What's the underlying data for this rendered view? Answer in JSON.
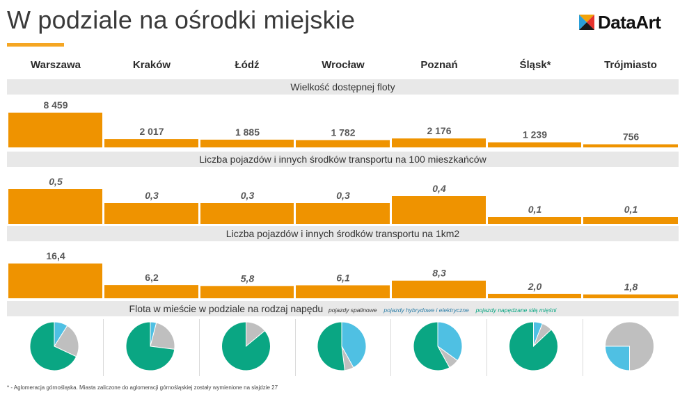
{
  "header": {
    "title": "W podziale na ośrodki miejskie",
    "logo_text": "DataArt"
  },
  "cities": [
    "Warszawa",
    "Kraków",
    "Łódź",
    "Wrocław",
    "Poznań",
    "Śląsk*",
    "Trójmiasto"
  ],
  "colors": {
    "bar": "#ef9300",
    "band": "#e8e8e8",
    "pie_combustion": "#bfbfbf",
    "pie_hybrid_electric": "#4fc0e3",
    "pie_muscle": "#0aa683",
    "accent": "#f5a623"
  },
  "chart_data": [
    {
      "type": "bar",
      "title": "Wielkość dostępnej floty",
      "categories": [
        "Warszawa",
        "Kraków",
        "Łódź",
        "Wrocław",
        "Poznań",
        "Śląsk*",
        "Trójmiasto"
      ],
      "values": [
        8459,
        2017,
        1885,
        1782,
        2176,
        1239,
        756
      ],
      "labels": [
        "8 459",
        "2 017",
        "1 885",
        "1 782",
        "2 176",
        "1 239",
        "756"
      ],
      "label_style": "normal"
    },
    {
      "type": "bar",
      "title": "Liczba pojazdów i innych środków transportu na 100 mieszkańców",
      "categories": [
        "Warszawa",
        "Kraków",
        "Łódź",
        "Wrocław",
        "Poznań",
        "Śląsk*",
        "Trójmiasto"
      ],
      "values": [
        0.5,
        0.3,
        0.3,
        0.3,
        0.4,
        0.1,
        0.1
      ],
      "labels": [
        "0,5",
        "0,3",
        "0,3",
        "0,3",
        "0,4",
        "0,1",
        "0,1"
      ],
      "label_style": "italic"
    },
    {
      "type": "bar",
      "title": "Liczba pojazdów i innych środków transportu na 1km2",
      "categories": [
        "Warszawa",
        "Kraków",
        "Łódź",
        "Wrocław",
        "Poznań",
        "Śląsk*",
        "Trójmiasto"
      ],
      "values": [
        16.4,
        6.2,
        5.8,
        6.1,
        8.3,
        2.0,
        1.8
      ],
      "labels": [
        "16,4",
        "6,2",
        "5,8",
        "6,1",
        "8,3",
        "2,0",
        "1,8"
      ],
      "label_style": "mixed"
    },
    {
      "type": "pie",
      "title": "Flota w mieście w podziale na rodzaj napędu",
      "legend": [
        {
          "name": "pojazdy spalinowe",
          "color": "#333333"
        },
        {
          "name": "pojazdy  hybrydowe i elektryczne",
          "color": "#2e7fa8"
        },
        {
          "name": "pojazdy napędzane siłą mięśni",
          "color": "#0aa683"
        }
      ],
      "categories": [
        "Warszawa",
        "Kraków",
        "Łódź",
        "Wrocław",
        "Poznań",
        "Śląsk*",
        "Trójmiasto"
      ],
      "shares": [
        {
          "combustion": 0.23,
          "hybrid_electric": 0.09,
          "muscle": 0.68
        },
        {
          "combustion": 0.23,
          "hybrid_electric": 0.04,
          "muscle": 0.73
        },
        {
          "combustion": 0.14,
          "hybrid_electric": 0.0,
          "muscle": 0.86
        },
        {
          "combustion": 0.06,
          "hybrid_electric": 0.42,
          "muscle": 0.52
        },
        {
          "combustion": 0.07,
          "hybrid_electric": 0.35,
          "muscle": 0.58
        },
        {
          "combustion": 0.07,
          "hybrid_electric": 0.06,
          "muscle": 0.87
        },
        {
          "combustion": 0.75,
          "hybrid_electric": 0.25,
          "muscle": 0.0
        }
      ]
    }
  ],
  "footnote": "* - Aglomeracja górnośląska. Miasta zaliczone do aglomeracji górnośląskiej zostały wymienione na slajdzie 27"
}
